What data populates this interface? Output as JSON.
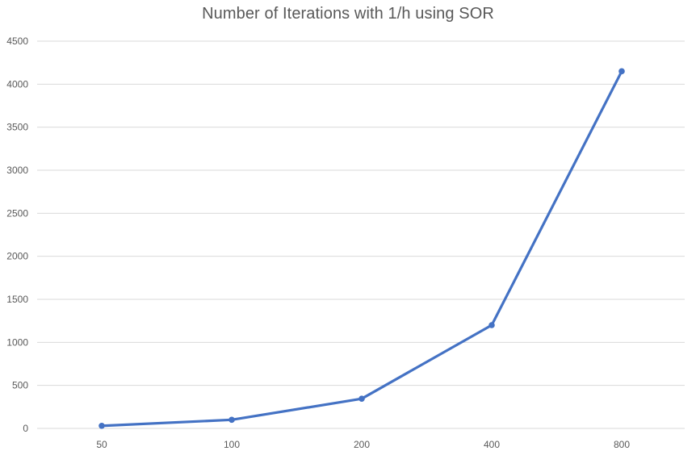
{
  "chart_data": {
    "type": "line",
    "title": "Number of Iterations with 1/h using SOR",
    "categories": [
      "50",
      "100",
      "200",
      "400",
      "800"
    ],
    "series": [
      {
        "values": [
          30,
          100,
          345,
          1200,
          4150
        ],
        "color": "#4472c4"
      }
    ],
    "ylim": [
      0,
      4500
    ],
    "yticks": [
      0,
      500,
      1000,
      1500,
      2000,
      2500,
      3000,
      3500,
      4000,
      4500
    ],
    "grid": true,
    "legend": "none",
    "markers": true
  }
}
